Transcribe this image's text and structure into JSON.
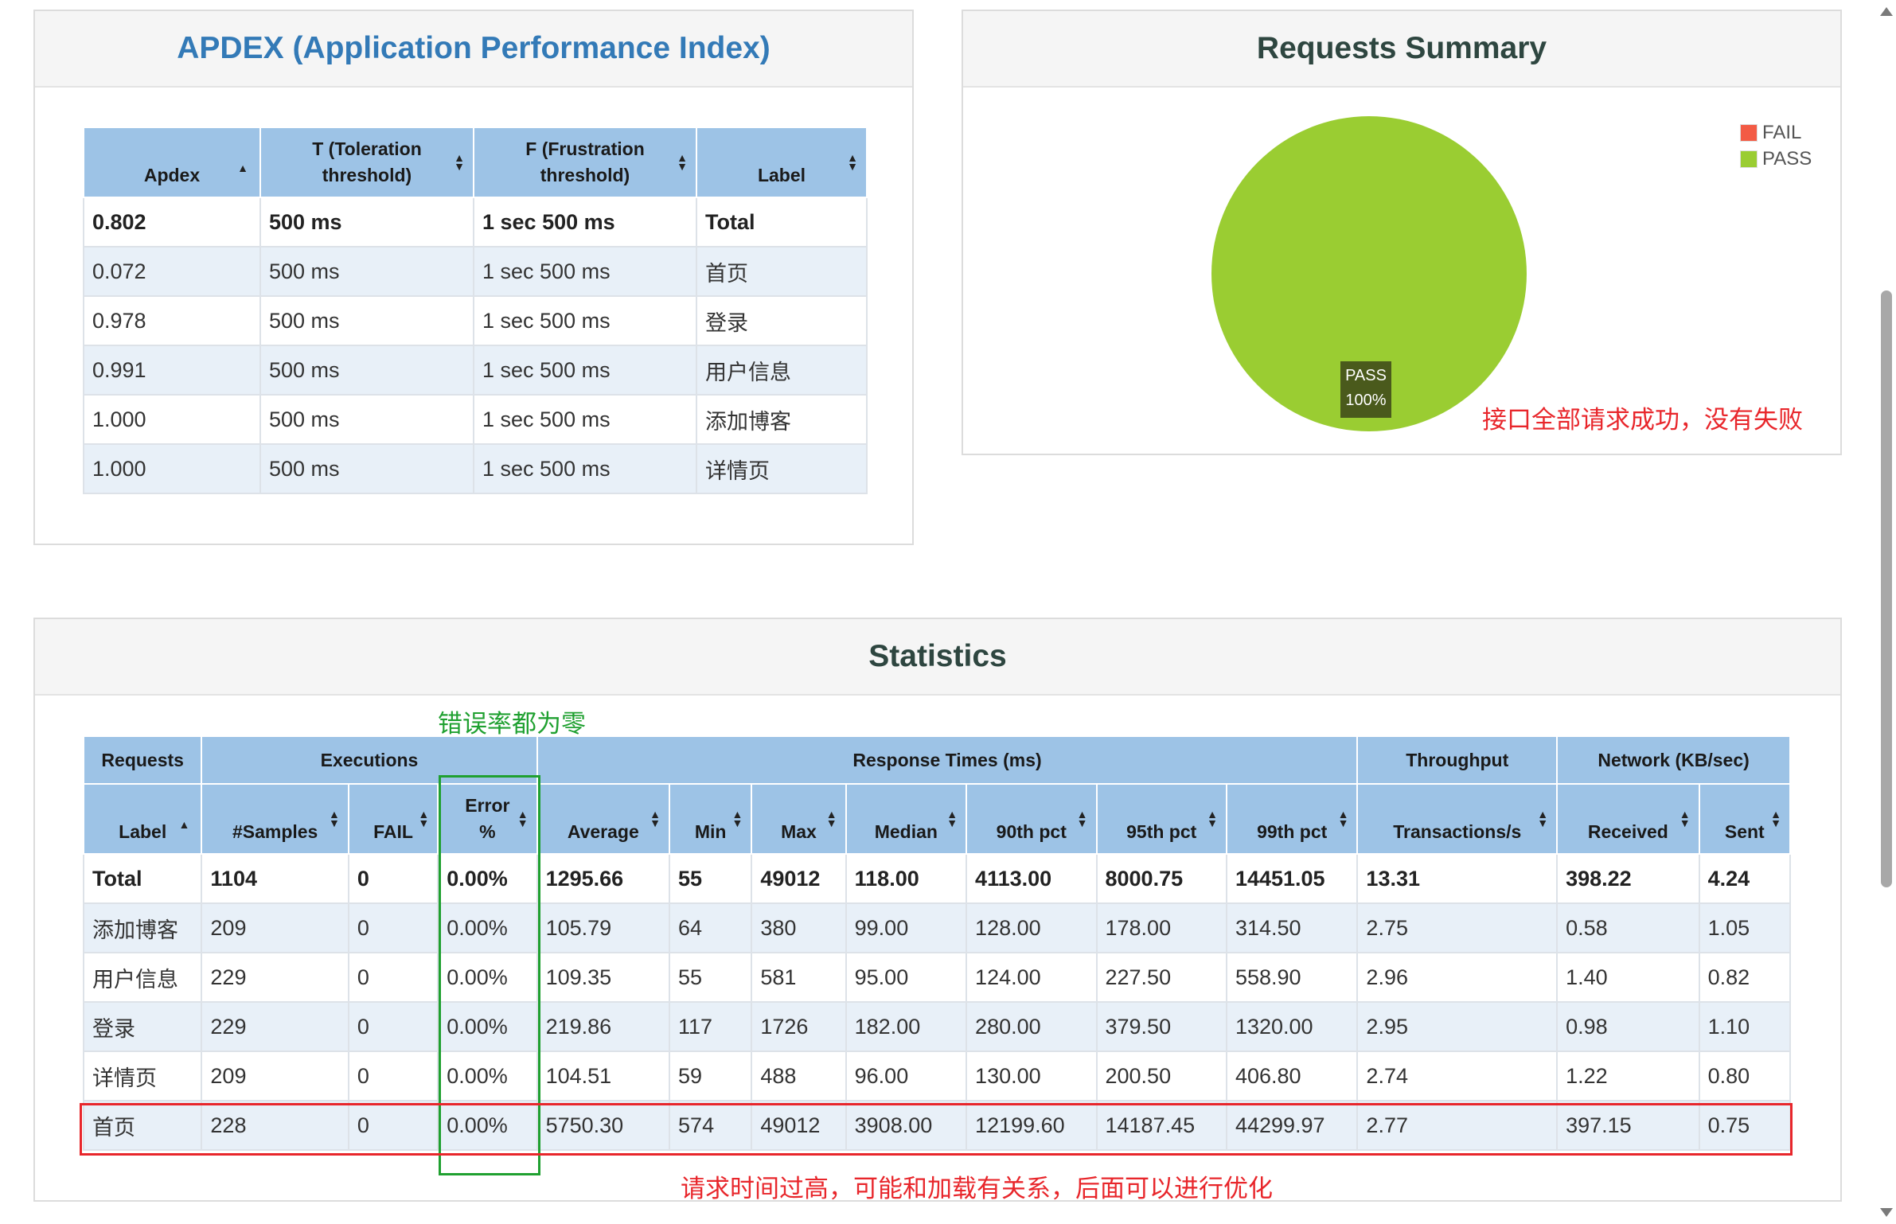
{
  "apdex": {
    "title": "APDEX (Application Performance Index)",
    "headers": [
      "Apdex",
      "T (Toleration threshold)",
      "F (Frustration threshold)",
      "Label"
    ],
    "header_lines": [
      [
        "Apdex"
      ],
      [
        "T (Toleration",
        "threshold)"
      ],
      [
        "F (Frustration",
        "threshold)"
      ],
      [
        "Label"
      ]
    ],
    "rows": [
      [
        "0.802",
        "500 ms",
        "1 sec 500 ms",
        "Total"
      ],
      [
        "0.072",
        "500 ms",
        "1 sec 500 ms",
        "首页"
      ],
      [
        "0.978",
        "500 ms",
        "1 sec 500 ms",
        "登录"
      ],
      [
        "0.991",
        "500 ms",
        "1 sec 500 ms",
        "用户信息"
      ],
      [
        "1.000",
        "500 ms",
        "1 sec 500 ms",
        "添加博客"
      ],
      [
        "1.000",
        "500 ms",
        "1 sec 500 ms",
        "详情页"
      ]
    ]
  },
  "summary": {
    "title": "Requests Summary",
    "legend": [
      {
        "label": "FAIL",
        "color": "#f35b45"
      },
      {
        "label": "PASS",
        "color": "#9acd32"
      }
    ],
    "pie": {
      "label": "PASS",
      "percent": "100%",
      "pass_fraction": 1.0,
      "color": "#9acd32",
      "label_bg": "#4a5a1c"
    },
    "annotation": "接口全部请求成功，没有失败"
  },
  "statistics": {
    "title": "Statistics",
    "group_headers": [
      "Requests",
      "Executions",
      "Response Times (ms)",
      "Throughput",
      "Network (KB/sec)"
    ],
    "headers": [
      "Label",
      "#Samples",
      "FAIL",
      "Error %",
      "Average",
      "Min",
      "Max",
      "Median",
      "90th pct",
      "95th pct",
      "99th pct",
      "Transactions/s",
      "Received",
      "Sent"
    ],
    "header_lines": [
      [
        "Label"
      ],
      [
        "#Samples"
      ],
      [
        "FAIL"
      ],
      [
        "Error",
        "%"
      ],
      [
        "Average"
      ],
      [
        "Min"
      ],
      [
        "Max"
      ],
      [
        "Median"
      ],
      [
        "90th pct"
      ],
      [
        "95th pct"
      ],
      [
        "99th pct"
      ],
      [
        "Transactions/s"
      ],
      [
        "Received"
      ],
      [
        "Sent"
      ]
    ],
    "rows": [
      [
        "Total",
        "1104",
        "0",
        "0.00%",
        "1295.66",
        "55",
        "49012",
        "118.00",
        "4113.00",
        "8000.75",
        "14451.05",
        "13.31",
        "398.22",
        "4.24"
      ],
      [
        "添加博客",
        "209",
        "0",
        "0.00%",
        "105.79",
        "64",
        "380",
        "99.00",
        "128.00",
        "178.00",
        "314.50",
        "2.75",
        "0.58",
        "1.05"
      ],
      [
        "用户信息",
        "229",
        "0",
        "0.00%",
        "109.35",
        "55",
        "581",
        "95.00",
        "124.00",
        "227.50",
        "558.90",
        "2.96",
        "1.40",
        "0.82"
      ],
      [
        "登录",
        "229",
        "0",
        "0.00%",
        "219.86",
        "117",
        "1726",
        "182.00",
        "280.00",
        "379.50",
        "1320.00",
        "2.95",
        "0.98",
        "1.10"
      ],
      [
        "详情页",
        "209",
        "0",
        "0.00%",
        "104.51",
        "59",
        "488",
        "96.00",
        "130.00",
        "200.50",
        "406.80",
        "2.74",
        "1.22",
        "0.80"
      ],
      [
        "首页",
        "228",
        "0",
        "0.00%",
        "5750.30",
        "574",
        "49012",
        "3908.00",
        "12199.60",
        "14187.45",
        "44299.97",
        "2.77",
        "397.15",
        "0.75"
      ]
    ],
    "annotation_error": "错误率都为零",
    "annotation_slow": "请求时间过高，可能和加载有关系，后面可以进行优化",
    "highlight_color_red": "#e8262b",
    "highlight_color_green": "#1fa030"
  }
}
